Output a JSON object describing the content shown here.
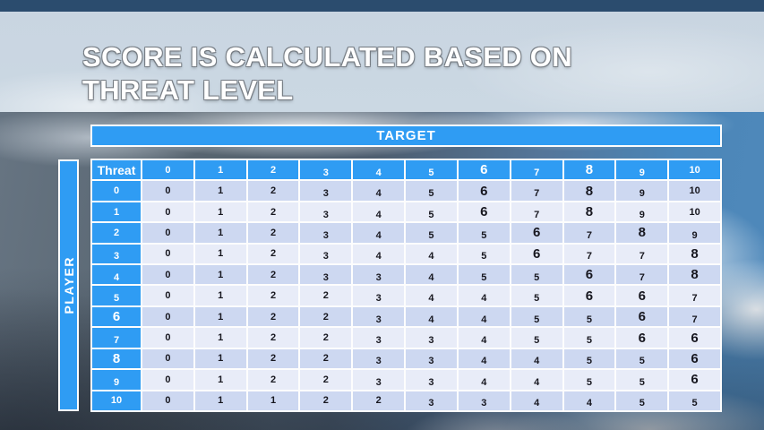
{
  "title": {
    "line1": "SCORE IS CALCULATED BASED ON",
    "line2": "THREAT LEVEL"
  },
  "table": {
    "target_label": "TARGET",
    "player_label": "PLAYER",
    "corner_label": "Threat",
    "column_headers": [
      "0",
      "1",
      "2",
      "3",
      "4",
      "5",
      "6",
      "7",
      "8",
      "9",
      "10"
    ],
    "row_headers": [
      "0",
      "1",
      "2",
      "3",
      "4",
      "5",
      "6",
      "7",
      "8",
      "9",
      "10"
    ],
    "rows": [
      [
        0,
        1,
        2,
        3,
        4,
        5,
        6,
        7,
        8,
        9,
        10
      ],
      [
        0,
        1,
        2,
        3,
        4,
        5,
        6,
        7,
        8,
        9,
        10
      ],
      [
        0,
        1,
        2,
        3,
        4,
        5,
        5,
        6,
        7,
        8,
        9
      ],
      [
        0,
        1,
        2,
        3,
        4,
        4,
        5,
        6,
        7,
        7,
        8
      ],
      [
        0,
        1,
        2,
        3,
        3,
        4,
        5,
        5,
        6,
        7,
        8
      ],
      [
        0,
        1,
        2,
        2,
        3,
        4,
        4,
        5,
        6,
        6,
        7
      ],
      [
        0,
        1,
        2,
        2,
        3,
        4,
        4,
        5,
        5,
        6,
        7
      ],
      [
        0,
        1,
        2,
        2,
        3,
        3,
        4,
        5,
        5,
        6,
        6
      ],
      [
        0,
        1,
        2,
        2,
        3,
        3,
        4,
        4,
        5,
        5,
        6
      ],
      [
        0,
        1,
        2,
        2,
        3,
        3,
        4,
        4,
        5,
        5,
        6
      ],
      [
        0,
        1,
        1,
        2,
        2,
        3,
        3,
        4,
        4,
        5,
        5
      ]
    ]
  },
  "colors": {
    "accent_blue": "#2F9CF3",
    "row_even": "#CDD8F1",
    "row_odd": "#E8ECF8",
    "top_strip": "#2B4C6E",
    "title_band": "#CBD8E3",
    "cell_text": "#17171F"
  }
}
